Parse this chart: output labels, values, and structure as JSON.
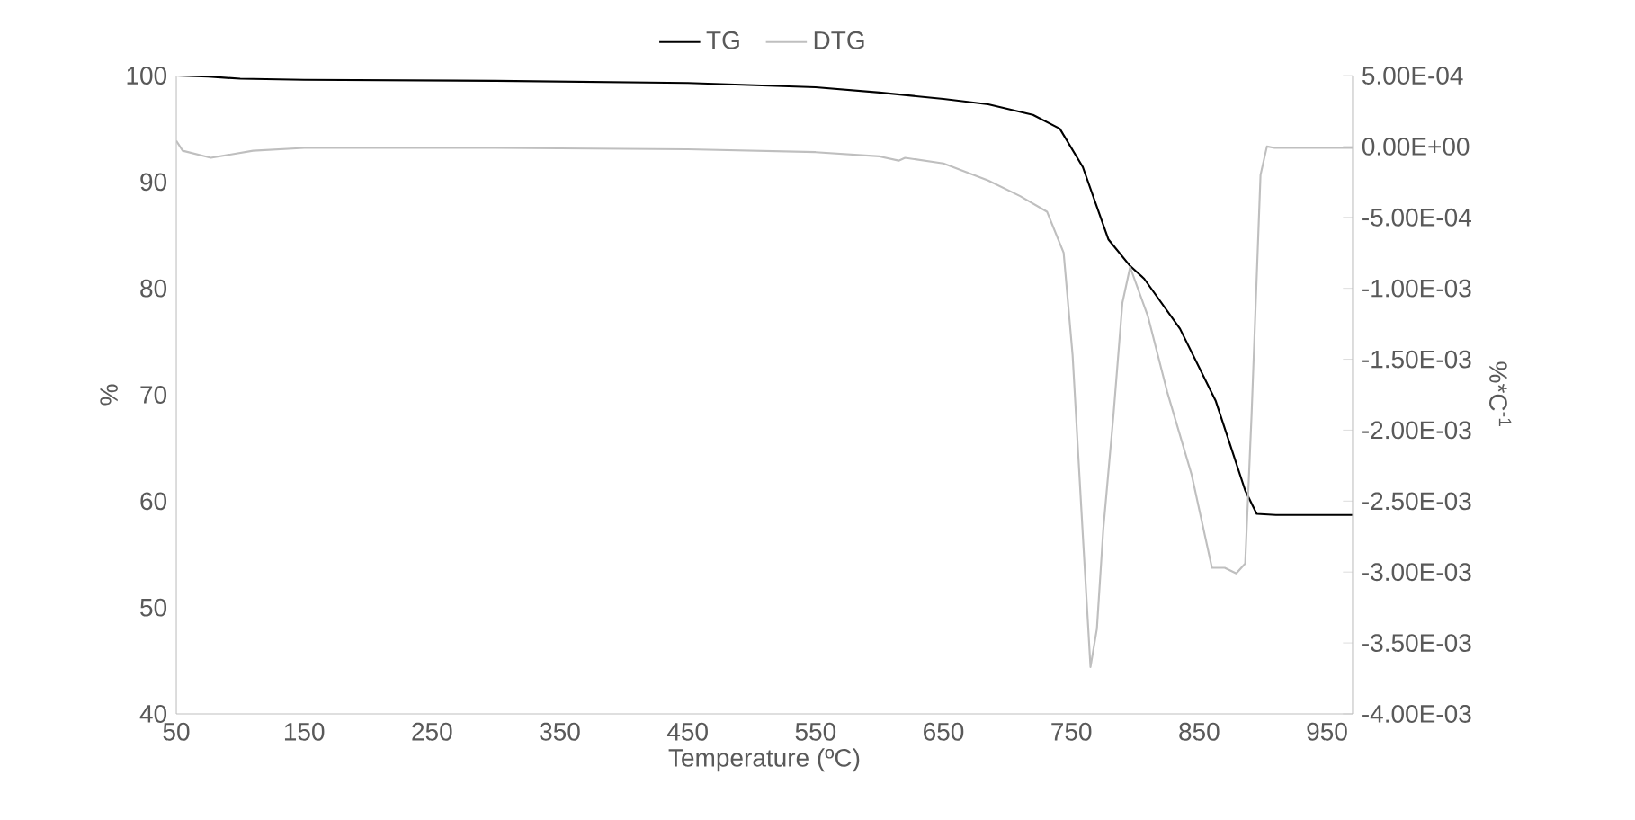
{
  "chart_data": {
    "type": "line",
    "xlabel": "Temperature (ºC)",
    "ylabel": "%",
    "y2label": "%*C$^{-1}$",
    "legend": "top",
    "grid": false,
    "marker": "none",
    "line_style": "solid",
    "xlim": [
      50,
      970
    ],
    "xticks": [
      50,
      150,
      250,
      350,
      450,
      550,
      650,
      750,
      850,
      950
    ],
    "ylim": [
      40,
      100
    ],
    "yticks": [
      40,
      50,
      60,
      70,
      80,
      90,
      100
    ],
    "y2lim": [
      -0.004,
      0.0005
    ],
    "y2ticks": [
      {
        "value": -0.004,
        "label": "-4.00E-03"
      },
      {
        "value": -0.0035,
        "label": "-3.50E-03"
      },
      {
        "value": -0.003,
        "label": "-3.00E-03"
      },
      {
        "value": -0.0025,
        "label": "-2.50E-03"
      },
      {
        "value": -0.002,
        "label": "-2.00E-03"
      },
      {
        "value": -0.0015,
        "label": "-1.50E-03"
      },
      {
        "value": -0.001,
        "label": "-1.00E-03"
      },
      {
        "value": -0.0005,
        "label": "-5.00E-04"
      },
      {
        "value": 0,
        "label": "0.00E+00"
      },
      {
        "value": 0.0005,
        "label": "5.00E-04"
      }
    ],
    "series": [
      {
        "name": "TG",
        "color": "#000000",
        "x": [
          50,
          75,
          100,
          150,
          300,
          450,
          550,
          600,
          650,
          685,
          720,
          741,
          759,
          779,
          796,
          807,
          835,
          863,
          886,
          895,
          910,
          970
        ],
        "values": [
          100,
          99.9,
          99.7,
          99.6,
          99.5,
          99.3,
          98.9,
          98.4,
          97.8,
          97.3,
          96.3,
          95.0,
          91.4,
          84.6,
          82.1,
          80.9,
          76.2,
          69.4,
          61.0,
          58.8,
          58.7,
          58.7
        ]
      },
      {
        "name": "DTG",
        "color": "#bfbfbf",
        "axis": "y2",
        "x": [
          50,
          55,
          77,
          110,
          150,
          300,
          450,
          550,
          600,
          615,
          620,
          650,
          685,
          710,
          731,
          744,
          751,
          759,
          765,
          770,
          775,
          783,
          790,
          796,
          810,
          825,
          844,
          860,
          870,
          879,
          886,
          891,
          898,
          903,
          909,
          970
        ],
        "values": [
          4e-05,
          -3e-05,
          -8e-05,
          -3e-05,
          -1e-05,
          -1e-05,
          -2e-05,
          -4e-05,
          -7e-05,
          -0.0001,
          -8e-05,
          -0.00012,
          -0.00024,
          -0.00035,
          -0.00046,
          -0.00075,
          -0.00147,
          -0.00274,
          -0.00367,
          -0.0034,
          -0.0027,
          -0.00189,
          -0.0011,
          -0.00085,
          -0.0012,
          -0.00173,
          -0.00231,
          -0.00297,
          -0.00297,
          -0.00301,
          -0.00294,
          -0.00189,
          -0.0002,
          0,
          -1e-05,
          -1e-05
        ]
      }
    ]
  }
}
